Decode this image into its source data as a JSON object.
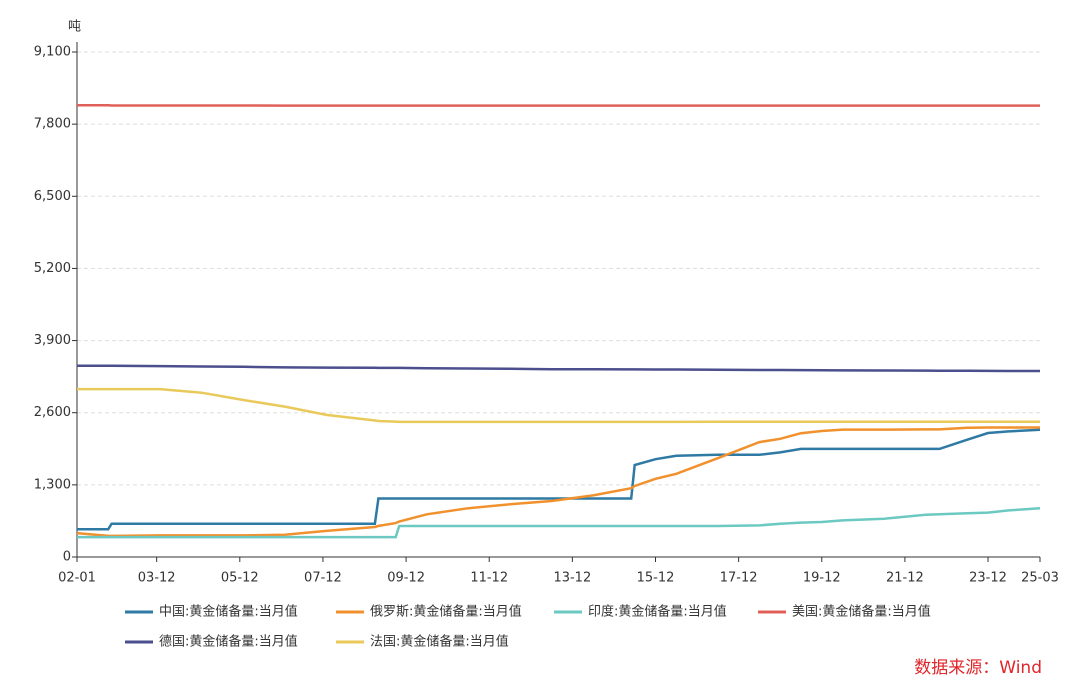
{
  "chart_data": {
    "type": "line",
    "y_unit": "吨",
    "source": "数据来源：Wind",
    "x": [
      "02-01",
      "02-10",
      "02-11",
      "04-01",
      "05-01",
      "06-01",
      "07-01",
      "08-01",
      "09-03",
      "09-04",
      "09-09",
      "09-10",
      "10-06",
      "11-06",
      "12-06",
      "13-06",
      "14-06",
      "15-05",
      "15-06",
      "15-12",
      "16-06",
      "17-06",
      "18-06",
      "18-12",
      "19-06",
      "19-12",
      "20-06",
      "21-06",
      "22-06",
      "22-10",
      "23-06",
      "23-12",
      "24-06",
      "25-03"
    ],
    "series": [
      {
        "name": "中国:黄金储备量:当月值",
        "color": "#2e7aa4",
        "values": [
          500,
          500,
          600,
          600,
          600,
          600,
          600,
          600,
          600,
          1054,
          1054,
          1054,
          1054,
          1054,
          1054,
          1054,
          1054,
          1054,
          1658,
          1762,
          1823,
          1842,
          1842,
          1885,
          1948,
          1948,
          1948,
          1948,
          1948,
          1948,
          2113,
          2235,
          2264,
          2292
        ]
      },
      {
        "name": "俄罗斯:黄金储备量:当月值",
        "color": "#f0912e",
        "values": [
          430,
          380,
          380,
          390,
          390,
          390,
          400,
          470,
          540,
          560,
          610,
          640,
          770,
          880,
          950,
          1010,
          1110,
          1240,
          1280,
          1410,
          1500,
          1780,
          2070,
          2130,
          2230,
          2270,
          2295,
          2295,
          2300,
          2300,
          2330,
          2333,
          2333,
          2333
        ]
      },
      {
        "name": "印度:黄金储备量:当月值",
        "color": "#6bc9c2",
        "values": [
          358,
          358,
          358,
          358,
          358,
          358,
          358,
          358,
          358,
          358,
          358,
          558,
          558,
          558,
          558,
          558,
          558,
          558,
          558,
          558,
          558,
          558,
          570,
          600,
          620,
          630,
          660,
          690,
          760,
          770,
          790,
          800,
          840,
          880
        ]
      },
      {
        "name": "美国:黄金储备量:当月值",
        "color": "#e06059",
        "values": [
          8140,
          8140,
          8136,
          8136,
          8136,
          8136,
          8134,
          8134,
          8134,
          8134,
          8134,
          8134,
          8134,
          8134,
          8134,
          8134,
          8134,
          8134,
          8134,
          8134,
          8134,
          8134,
          8134,
          8134,
          8134,
          8134,
          8134,
          8134,
          8134,
          8134,
          8134,
          8134,
          8134,
          8134
        ]
      },
      {
        "name": "德国:黄金储备量:当月值",
        "color": "#4b4f8e",
        "values": [
          3446,
          3446,
          3446,
          3440,
          3433,
          3427,
          3417,
          3413,
          3409,
          3408,
          3408,
          3407,
          3401,
          3396,
          3391,
          3385,
          3384,
          3381,
          3381,
          3378,
          3378,
          3374,
          3370,
          3369,
          3367,
          3364,
          3363,
          3360,
          3358,
          3356,
          3355,
          3353,
          3352,
          3352
        ]
      },
      {
        "name": "法国:黄金储备量:当月值",
        "color": "#e8c95a",
        "values": [
          3025,
          3025,
          3025,
          3025,
          2960,
          2830,
          2710,
          2560,
          2460,
          2450,
          2440,
          2435,
          2435,
          2435,
          2435,
          2435,
          2435,
          2435,
          2435,
          2435,
          2435,
          2436,
          2436,
          2436,
          2436,
          2436,
          2436,
          2436,
          2437,
          2437,
          2437,
          2437,
          2437,
          2437
        ]
      }
    ],
    "xticks": [
      "02-01",
      "03-12",
      "05-12",
      "07-12",
      "09-12",
      "11-12",
      "13-12",
      "15-12",
      "17-12",
      "19-12",
      "21-12",
      "23-12",
      "25-03"
    ],
    "ylim": [
      0,
      9100
    ],
    "yticks": [
      0,
      {
        "value": 1300,
        "label": "1,300"
      },
      {
        "value": 2600,
        "label": "2,600"
      },
      {
        "value": 3900,
        "label": "3,900"
      },
      {
        "value": 5200,
        "label": "5,200"
      },
      {
        "value": 6500,
        "label": "6,500"
      },
      {
        "value": 7800,
        "label": "7,800"
      },
      {
        "value": 9100,
        "label": "9,100"
      }
    ],
    "grid": true
  }
}
